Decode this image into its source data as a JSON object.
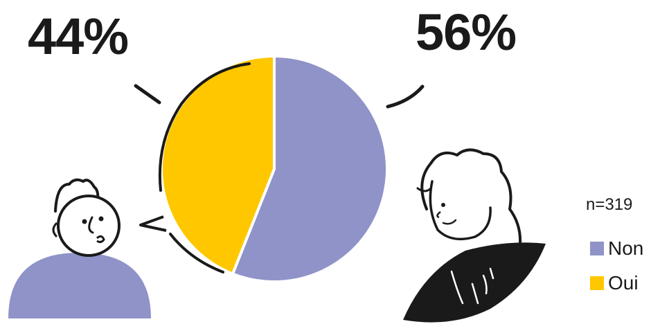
{
  "chart_data": {
    "type": "pie",
    "sample_size": "n=319",
    "slices": [
      {
        "name": "Non",
        "value": 56,
        "label": "56%",
        "color": "#8f93c8"
      },
      {
        "name": "Oui",
        "value": 44,
        "label": "44%",
        "color": "#ffc700"
      }
    ],
    "legend": {
      "placement": "right",
      "entries": [
        "Non",
        "Oui"
      ]
    }
  },
  "colors": {
    "non": "#8f93c8",
    "oui": "#ffc700",
    "ink": "#1a1a1a"
  },
  "illustrations": [
    "man-avatar-illustration",
    "woman-avatar-illustration"
  ]
}
